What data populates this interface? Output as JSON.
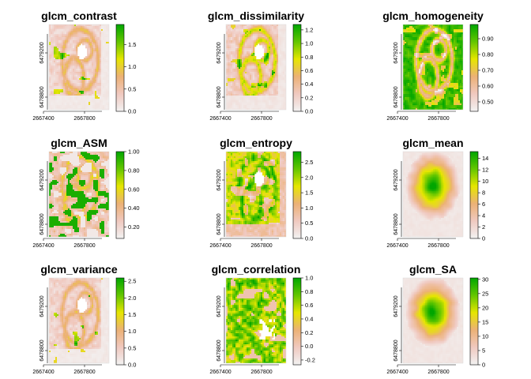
{
  "figure": {
    "x_ticks": [
      "2667400",
      "2667800"
    ],
    "y_ticks": [
      "6479200",
      "6478800"
    ]
  },
  "colors": {
    "ramp": [
      "#f2f2f2",
      "#f0c9c0",
      "#ecb176",
      "#e6e600",
      "#63c600",
      "#00a600"
    ]
  },
  "chart_data": [
    {
      "type": "heatmap",
      "title": "glcm_contrast",
      "legend_ticks": [
        "1.5",
        "1.0",
        "0.5",
        "0.0"
      ],
      "legend_values": [
        1.5,
        1.0,
        0.5,
        0.0
      ],
      "range": [
        0,
        1.95
      ],
      "pattern": "edges_low",
      "grid": false
    },
    {
      "type": "heatmap",
      "title": "glcm_dissimilarity",
      "legend_ticks": [
        "1.2",
        "1.0",
        "0.8",
        "0.6",
        "0.4",
        "0.2",
        "0.0"
      ],
      "legend_values": [
        1.2,
        1.0,
        0.8,
        0.6,
        0.4,
        0.2,
        0.0
      ],
      "range": [
        0,
        1.28
      ],
      "pattern": "edges_mid",
      "grid": false
    },
    {
      "type": "heatmap",
      "title": "glcm_homogeneity",
      "legend_ticks": [
        "0.90",
        "0.80",
        "0.70",
        "0.60",
        "0.50"
      ],
      "legend_values": [
        0.9,
        0.8,
        0.7,
        0.6,
        0.5
      ],
      "range": [
        0.44,
        0.99
      ],
      "pattern": "inverse_edges",
      "grid": false
    },
    {
      "type": "heatmap",
      "title": "glcm_ASM",
      "legend_ticks": [
        "1.00",
        "0.80",
        "0.60",
        "0.40",
        "0.20"
      ],
      "legend_values": [
        1.0,
        0.8,
        0.6,
        0.4,
        0.2
      ],
      "range": [
        0.08,
        1.0
      ],
      "pattern": "patchy",
      "grid": false
    },
    {
      "type": "heatmap",
      "title": "glcm_entropy",
      "legend_ticks": [
        "2.5",
        "2.0",
        "1.5",
        "1.0",
        "0.5",
        "0.0"
      ],
      "legend_values": [
        2.5,
        2.0,
        1.5,
        1.0,
        0.5,
        0.0
      ],
      "range": [
        0,
        2.85
      ],
      "pattern": "entropy",
      "grid": false
    },
    {
      "type": "heatmap",
      "title": "glcm_mean",
      "legend_ticks": [
        "14",
        "12",
        "10",
        "8",
        "6",
        "4",
        "2",
        "0"
      ],
      "legend_values": [
        14,
        12,
        10,
        8,
        6,
        4,
        2,
        0
      ],
      "range": [
        0,
        15.2
      ],
      "pattern": "blob",
      "grid": false
    },
    {
      "type": "heatmap",
      "title": "glcm_variance",
      "legend_ticks": [
        "2.5",
        "2.0",
        "1.5",
        "1.0",
        "0.5",
        "0.0"
      ],
      "legend_values": [
        2.5,
        2.0,
        1.5,
        1.0,
        0.5,
        0.0
      ],
      "range": [
        0,
        2.6
      ],
      "pattern": "edges_low",
      "grid": false
    },
    {
      "type": "heatmap",
      "title": "glcm_correlation",
      "legend_ticks": [
        "1.0",
        "0.8",
        "0.6",
        "0.4",
        "0.2",
        "0.0",
        "-0.2"
      ],
      "legend_values": [
        1.0,
        0.8,
        0.6,
        0.4,
        0.2,
        0.0,
        -0.2
      ],
      "range": [
        -0.27,
        1.0
      ],
      "pattern": "correlation",
      "grid": false
    },
    {
      "type": "heatmap",
      "title": "glcm_SA",
      "legend_ticks": [
        "30",
        "25",
        "20",
        "15",
        "10",
        "5",
        "0"
      ],
      "legend_values": [
        30,
        25,
        20,
        15,
        10,
        5,
        0
      ],
      "range": [
        0,
        30.5
      ],
      "pattern": "blob",
      "grid": false
    }
  ]
}
